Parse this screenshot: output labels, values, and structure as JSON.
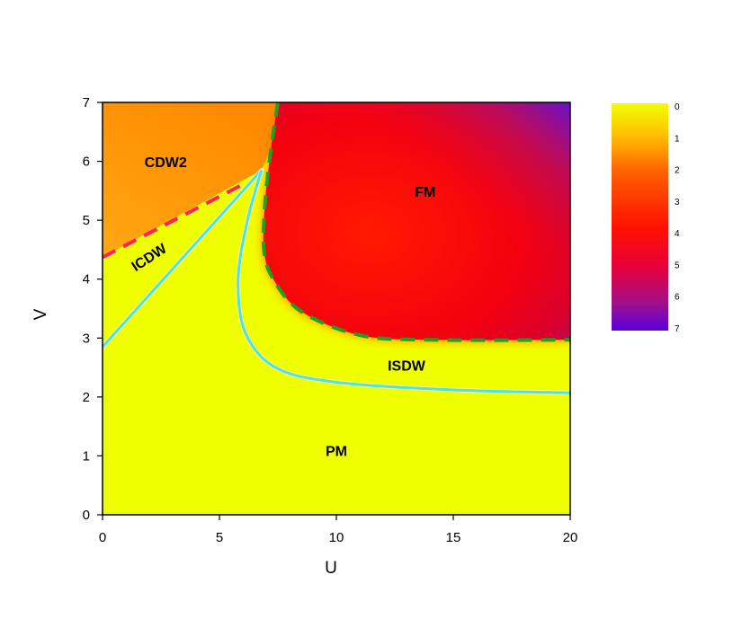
{
  "chart_data": {
    "type": "heatmap",
    "title": "",
    "xlabel": "U",
    "ylabel": "V",
    "xlim": [
      0,
      20
    ],
    "ylim": [
      0,
      7
    ],
    "xticks": [
      0,
      5,
      10,
      15,
      20
    ],
    "yticks": [
      0,
      1,
      2,
      3,
      4,
      5,
      6,
      7
    ],
    "colorbar": {
      "range": [
        0,
        7
      ],
      "ticks": [
        0,
        1,
        2,
        3,
        4,
        5,
        6,
        7
      ],
      "colors": [
        "#f0ff00",
        "#ffa000",
        "#ff2a00",
        "#ff0000",
        "#5a00e0"
      ]
    },
    "regions": [
      {
        "label": "CDW2",
        "u": 2.7,
        "v": 5.9
      },
      {
        "label": "ICDW",
        "u": 2.1,
        "v": 4.3,
        "rotate": true
      },
      {
        "label": "FM",
        "u": 13.8,
        "v": 5.4
      },
      {
        "label": "ISDW",
        "u": 13.0,
        "v": 2.45
      },
      {
        "label": "PM",
        "u": 10.0,
        "v": 1.0
      }
    ],
    "boundaries": [
      {
        "style": "dashed",
        "color": "#ff2060",
        "points": [
          [
            0,
            4.37
          ],
          [
            6.2,
            5.65
          ]
        ]
      },
      {
        "style": "solid",
        "color": "#50e0e8",
        "points": [
          [
            0,
            2.85
          ],
          [
            6.8,
            5.85
          ]
        ]
      },
      {
        "style": "solid",
        "color": "#50e0e8",
        "points": [
          [
            6.8,
            5.85
          ],
          [
            6.2,
            5.0
          ],
          [
            5.8,
            4.0
          ],
          [
            6.1,
            3.1
          ],
          [
            7.4,
            2.5
          ],
          [
            10,
            2.25
          ],
          [
            15,
            2.12
          ],
          [
            20,
            2.07
          ]
        ]
      },
      {
        "style": "dashed",
        "color": "#20a020",
        "points": [
          [
            7.5,
            7.0
          ],
          [
            7.2,
            6.2
          ],
          [
            6.95,
            5.3
          ],
          [
            6.9,
            4.5
          ],
          [
            7.3,
            4.0
          ],
          [
            8.5,
            3.45
          ],
          [
            11,
            3.05
          ],
          [
            14,
            2.97
          ],
          [
            20,
            2.97
          ]
        ]
      }
    ]
  }
}
